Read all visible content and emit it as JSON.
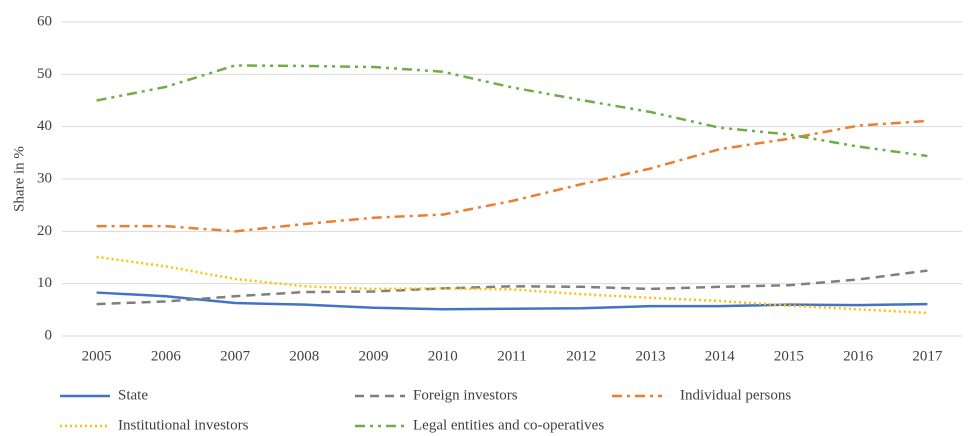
{
  "chart_data": {
    "type": "line",
    "y_label": "Share in %",
    "categories": [
      "2005",
      "2006",
      "2007",
      "2008",
      "2009",
      "2010",
      "2011",
      "2012",
      "2013",
      "2014",
      "2015",
      "2016",
      "2017"
    ],
    "ylim": [
      0,
      60
    ],
    "yticks": [
      0,
      10,
      20,
      30,
      40,
      50,
      60
    ],
    "grid": true,
    "legend": "bottom",
    "series": [
      {
        "name": "State",
        "color": "#4472c4",
        "dash": "solid",
        "values": [
          8.3,
          7.6,
          6.3,
          6.0,
          5.4,
          5.1,
          5.2,
          5.3,
          5.7,
          5.7,
          6.0,
          5.9,
          6.1
        ]
      },
      {
        "name": "Foreign investors",
        "color": "#7f7f7f",
        "dash": "dashed",
        "values": [
          6.1,
          6.6,
          7.6,
          8.4,
          8.5,
          9.1,
          9.5,
          9.4,
          9.0,
          9.4,
          9.7,
          10.8,
          12.5
        ]
      },
      {
        "name": "Individual persons",
        "color": "#ed7d31",
        "dash": "dash-dot",
        "values": [
          21.0,
          21.0,
          20.0,
          21.4,
          22.6,
          23.2,
          25.8,
          29.0,
          32.0,
          35.7,
          37.7,
          40.2,
          41.1
        ]
      },
      {
        "name": "Institutional investors",
        "color": "#ffc000",
        "dash": "dotted",
        "values": [
          15.1,
          13.3,
          10.9,
          9.5,
          9.0,
          9.1,
          8.9,
          8.0,
          7.3,
          6.7,
          5.8,
          5.1,
          4.4
        ]
      },
      {
        "name": "Legal entities and co-operatives",
        "color": "#70ad47",
        "dash": "dash-dot-dot",
        "values": [
          45.0,
          47.6,
          51.7,
          51.6,
          51.4,
          50.5,
          47.5,
          45.1,
          42.8,
          39.8,
          38.5,
          36.2,
          34.4
        ]
      }
    ]
  }
}
